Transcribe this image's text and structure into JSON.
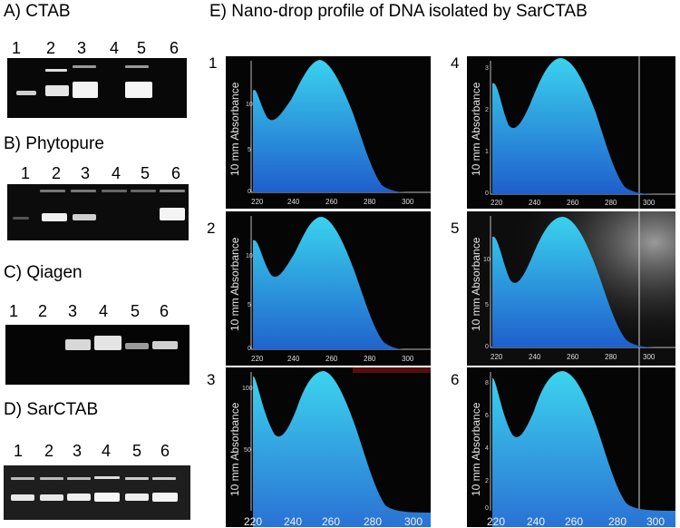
{
  "panels": {
    "a": {
      "title": "A)      CTAB",
      "lanes": [
        "1",
        "2",
        "3",
        "4",
        "5",
        "6"
      ]
    },
    "b": {
      "title": "B)      Phytopure",
      "lanes": [
        "1",
        "2",
        "3",
        "4",
        "5",
        "6"
      ]
    },
    "c": {
      "title": "C)      Qiagen",
      "lanes": [
        "1",
        "2",
        "3",
        "4",
        "5",
        "6"
      ]
    },
    "d": {
      "title": "D)      SarCTAB",
      "lanes": [
        "1",
        "2",
        "3",
        "4",
        "5",
        "6"
      ]
    },
    "e": {
      "title": "E)  Nano-drop profile of DNA isolated by SarCTAB"
    }
  },
  "spectra": [
    {
      "num": "1",
      "ylabel": "10 mm Absorbance",
      "xticks": [
        "220",
        "240",
        "260",
        "280",
        "300"
      ],
      "yticks": [
        "10",
        "5",
        "0"
      ]
    },
    {
      "num": "2",
      "ylabel": "10 mm Absorbance",
      "xticks": [
        "220",
        "240",
        "260",
        "280",
        "300"
      ],
      "yticks": [
        "10",
        "5",
        "0"
      ]
    },
    {
      "num": "3",
      "ylabel": "10 mm Absorbance",
      "xticks": [
        "220",
        "240",
        "260",
        "280",
        "300"
      ],
      "yticks": [
        "100",
        "50"
      ]
    },
    {
      "num": "4",
      "ylabel": "10 mm Absorbance",
      "xticks": [
        "220",
        "240",
        "260",
        "280",
        "300"
      ],
      "yticks": [
        "3",
        "2",
        "1",
        "0"
      ]
    },
    {
      "num": "5",
      "ylabel": "10 mm Absorbance",
      "xticks": [
        "220",
        "240",
        "260",
        "280",
        "300"
      ],
      "yticks": [
        "10",
        "5",
        "0"
      ]
    },
    {
      "num": "6",
      "ylabel": "10 mm Absorbance",
      "xticks": [
        "220",
        "240",
        "260",
        "280",
        "300"
      ],
      "yticks": [
        "8",
        "6",
        "4",
        "2",
        "0"
      ]
    }
  ],
  "colors": {
    "peak_fill": "#3ac8ea",
    "peak_fill_dark": "#1f4fc0",
    "gel_band": "#f2f2f2"
  }
}
